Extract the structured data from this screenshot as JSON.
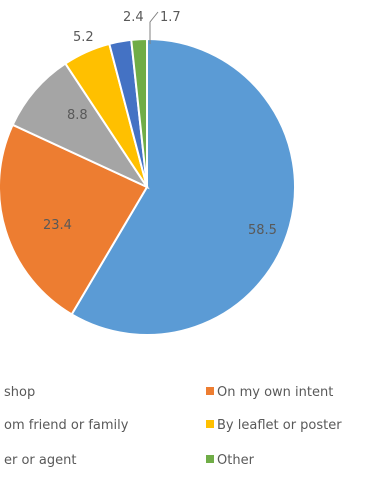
{
  "chart_data": {
    "type": "pie",
    "title": "",
    "slices": [
      {
        "value": 58.5,
        "label": "58.5",
        "color": "#5B9BD5"
      },
      {
        "value": 23.4,
        "label": "23.4",
        "color": "#ED7D31"
      },
      {
        "value": 8.8,
        "label": "8.8",
        "color": "#A5A5A5"
      },
      {
        "value": 5.2,
        "label": "5.2",
        "color": "#FFC000"
      },
      {
        "value": 2.4,
        "label": "2.4",
        "color": "#4472C4"
      },
      {
        "value": 1.7,
        "label": "1.7",
        "color": "#70AD47"
      }
    ],
    "legend": {
      "position": "bottom",
      "entries": [
        {
          "label": "shop",
          "color": "#5B9BD5",
          "swatch_visible": false
        },
        {
          "label": "On my own intent",
          "color": "#ED7D31",
          "swatch_visible": true
        },
        {
          "label": "om friend or family",
          "color": "#A5A5A5",
          "swatch_visible": false
        },
        {
          "label": "By leaflet or poster",
          "color": "#FFC000",
          "swatch_visible": true
        },
        {
          "label": "er or agent",
          "color": "#4472C4",
          "swatch_visible": false
        },
        {
          "label": "Other",
          "color": "#70AD47",
          "swatch_visible": true
        }
      ]
    }
  }
}
